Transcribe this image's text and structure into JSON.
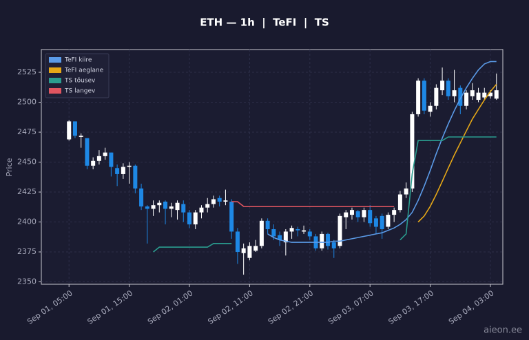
{
  "chart_data": {
    "type": "candlestick",
    "title": "ETH — 1h  |  TeFI  |  TS",
    "y_label": "Price",
    "watermark": "aieon.ee",
    "x": [
      "Sep 01, 05:00",
      "Sep 01, 06:00",
      "Sep 01, 07:00",
      "Sep 01, 08:00",
      "Sep 01, 09:00",
      "Sep 01, 10:00",
      "Sep 01, 11:00",
      "Sep 01, 12:00",
      "Sep 01, 13:00",
      "Sep 01, 14:00",
      "Sep 01, 15:00",
      "Sep 01, 16:00",
      "Sep 01, 17:00",
      "Sep 01, 18:00",
      "Sep 01, 19:00",
      "Sep 01, 20:00",
      "Sep 01, 21:00",
      "Sep 01, 22:00",
      "Sep 01, 23:00",
      "Sep 02, 00:00",
      "Sep 02, 01:00",
      "Sep 02, 02:00",
      "Sep 02, 03:00",
      "Sep 02, 04:00",
      "Sep 02, 05:00",
      "Sep 02, 06:00",
      "Sep 02, 07:00",
      "Sep 02, 08:00",
      "Sep 02, 09:00",
      "Sep 02, 10:00",
      "Sep 02, 11:00",
      "Sep 02, 12:00",
      "Sep 02, 13:00",
      "Sep 02, 14:00",
      "Sep 02, 15:00",
      "Sep 02, 16:00",
      "Sep 02, 17:00",
      "Sep 02, 18:00",
      "Sep 02, 19:00",
      "Sep 02, 20:00",
      "Sep 02, 21:00",
      "Sep 02, 22:00",
      "Sep 02, 23:00",
      "Sep 03, 00:00",
      "Sep 03, 01:00",
      "Sep 03, 02:00",
      "Sep 03, 03:00",
      "Sep 03, 04:00",
      "Sep 03, 05:00",
      "Sep 03, 06:00",
      "Sep 03, 07:00",
      "Sep 03, 08:00",
      "Sep 03, 09:00",
      "Sep 03, 10:00",
      "Sep 03, 11:00",
      "Sep 03, 12:00",
      "Sep 03, 13:00",
      "Sep 03, 14:00",
      "Sep 03, 15:00",
      "Sep 03, 16:00",
      "Sep 03, 17:00",
      "Sep 03, 18:00",
      "Sep 03, 19:00",
      "Sep 03, 20:00",
      "Sep 03, 21:00",
      "Sep 03, 22:00",
      "Sep 03, 23:00",
      "Sep 04, 00:00",
      "Sep 04, 01:00",
      "Sep 04, 02:00",
      "Sep 04, 03:00",
      "Sep 04, 04:00"
    ],
    "open": [
      2469,
      2484,
      2471,
      2470,
      2447,
      2451,
      2455,
      2458,
      2445,
      2440,
      2446,
      2447,
      2428,
      2413,
      2411,
      2414,
      2417,
      2411,
      2410,
      2415,
      2408,
      2398,
      2408,
      2412,
      2415,
      2420,
      2417,
      2417,
      2392,
      2374,
      2370,
      2376,
      2380,
      2401,
      2394,
      2389,
      2383,
      2392,
      2394,
      2392,
      2392,
      2388,
      2378,
      2390,
      2383,
      2380,
      2404,
      2406,
      2409,
      2404,
      2410,
      2403,
      2405,
      2396,
      2406,
      2410,
      2423,
      2428,
      2490,
      2518,
      2492,
      2497,
      2510,
      2518,
      2505,
      2512,
      2497,
      2505,
      2502,
      2504,
      2505,
      2503
    ],
    "high": [
      2485,
      2484,
      2474,
      2470,
      2454,
      2460,
      2462,
      2458,
      2448,
      2449,
      2450,
      2448,
      2432,
      2414,
      2418,
      2418,
      2418,
      2416,
      2418,
      2418,
      2410,
      2410,
      2414,
      2420,
      2422,
      2422,
      2427,
      2419,
      2395,
      2382,
      2383,
      2385,
      2403,
      2403,
      2398,
      2392,
      2394,
      2397,
      2396,
      2397,
      2394,
      2390,
      2392,
      2391,
      2385,
      2407,
      2410,
      2412,
      2410,
      2412,
      2414,
      2405,
      2407,
      2408,
      2412,
      2426,
      2433,
      2492,
      2520,
      2520,
      2500,
      2515,
      2529,
      2520,
      2527,
      2514,
      2510,
      2516,
      2512,
      2512,
      2510,
      2524
    ],
    "low": [
      2468,
      2470,
      2462,
      2444,
      2444,
      2448,
      2452,
      2438,
      2430,
      2436,
      2432,
      2424,
      2410,
      2382,
      2405,
      2408,
      2398,
      2404,
      2402,
      2400,
      2395,
      2394,
      2403,
      2408,
      2412,
      2413,
      2414,
      2386,
      2365,
      2356,
      2368,
      2375,
      2378,
      2390,
      2385,
      2380,
      2372,
      2386,
      2388,
      2390,
      2385,
      2376,
      2376,
      2377,
      2370,
      2378,
      2394,
      2402,
      2400,
      2400,
      2396,
      2390,
      2386,
      2394,
      2400,
      2408,
      2420,
      2425,
      2488,
      2490,
      2488,
      2494,
      2506,
      2502,
      2500,
      2490,
      2494,
      2502,
      2500,
      2502,
      2503,
      2502
    ],
    "close": [
      2484,
      2472,
      2472,
      2447,
      2451,
      2455,
      2458,
      2446,
      2440,
      2446,
      2447,
      2428,
      2413,
      2411,
      2414,
      2416,
      2411,
      2413,
      2416,
      2408,
      2398,
      2408,
      2412,
      2415,
      2419,
      2417,
      2418,
      2392,
      2375,
      2378,
      2380,
      2380,
      2401,
      2394,
      2388,
      2385,
      2392,
      2395,
      2393,
      2393,
      2388,
      2378,
      2390,
      2380,
      2378,
      2405,
      2408,
      2410,
      2404,
      2410,
      2399,
      2396,
      2394,
      2406,
      2410,
      2423,
      2428,
      2490,
      2518,
      2493,
      2497,
      2512,
      2518,
      2505,
      2510,
      2497,
      2508,
      2510,
      2508,
      2508,
      2508,
      2510
    ],
    "up_color": "#ffffff",
    "down_color": "#1e88e5",
    "series": [
      {
        "name": "TeFI kiire",
        "color": "#5b9be8",
        "values": [
          null,
          null,
          null,
          null,
          null,
          null,
          null,
          null,
          null,
          null,
          null,
          null,
          null,
          null,
          null,
          null,
          null,
          null,
          null,
          null,
          null,
          null,
          null,
          null,
          null,
          null,
          null,
          null,
          null,
          null,
          null,
          null,
          null,
          2390,
          2387,
          2385,
          2384,
          2383,
          2383,
          2383,
          2383,
          2383,
          2383,
          2383,
          2384,
          2384,
          2385,
          2386,
          2387,
          2388,
          2389,
          2390,
          2391,
          2393,
          2395,
          2398,
          2402,
          2408,
          2418,
          2430,
          2443,
          2457,
          2470,
          2482,
          2493,
          2503,
          2512,
          2520,
          2527,
          2532,
          2534,
          2534
        ]
      },
      {
        "name": "TeFI aeglane",
        "color": "#e6a817",
        "values": [
          null,
          null,
          null,
          null,
          null,
          null,
          null,
          null,
          null,
          null,
          null,
          null,
          null,
          null,
          null,
          null,
          null,
          null,
          null,
          null,
          null,
          null,
          null,
          null,
          null,
          null,
          null,
          null,
          null,
          null,
          null,
          null,
          null,
          null,
          null,
          null,
          null,
          null,
          null,
          null,
          null,
          null,
          null,
          null,
          null,
          null,
          null,
          null,
          null,
          null,
          null,
          null,
          null,
          null,
          null,
          null,
          null,
          null,
          2400,
          2405,
          2413,
          2423,
          2434,
          2445,
          2456,
          2466,
          2476,
          2486,
          2494,
          2502,
          2509,
          2515
        ]
      },
      {
        "name": "TS tõusev",
        "color": "#2a9d8f",
        "values": [
          null,
          null,
          null,
          null,
          null,
          null,
          null,
          null,
          null,
          null,
          null,
          null,
          null,
          null,
          2375,
          2379,
          2379,
          2379,
          2379,
          2379,
          2379,
          2379,
          2379,
          2379,
          2382,
          2382,
          2382,
          2382,
          null,
          null,
          null,
          null,
          null,
          null,
          null,
          null,
          null,
          null,
          null,
          null,
          null,
          null,
          null,
          null,
          null,
          null,
          null,
          null,
          null,
          null,
          null,
          null,
          null,
          null,
          null,
          2385,
          2390,
          2440,
          2468,
          2468,
          2468,
          2468,
          2468,
          2471,
          2471,
          2471,
          2471,
          2471,
          2471,
          2471,
          2471,
          2471
        ]
      },
      {
        "name": "TS langev",
        "color": "#e05560",
        "values": [
          null,
          null,
          null,
          null,
          null,
          null,
          null,
          null,
          null,
          null,
          null,
          null,
          null,
          null,
          null,
          null,
          null,
          null,
          null,
          null,
          null,
          null,
          null,
          null,
          null,
          null,
          null,
          2417,
          2417,
          2413,
          2413,
          2413,
          2413,
          2413,
          2413,
          2413,
          2413,
          2413,
          2413,
          2413,
          2413,
          2413,
          2413,
          2413,
          2413,
          2413,
          2413,
          2413,
          2413,
          2413,
          2413,
          2413,
          2413,
          2413,
          2413,
          null,
          null,
          null,
          null,
          null,
          null,
          null,
          null,
          null,
          null,
          null,
          null,
          null,
          null,
          null,
          null,
          null
        ]
      }
    ],
    "ylim": [
      2348,
      2544
    ],
    "yticks": [
      2350,
      2375,
      2400,
      2425,
      2450,
      2475,
      2500,
      2525
    ],
    "xticks": [
      "Sep 01, 05:00",
      "Sep 01, 15:00",
      "Sep 02, 01:00",
      "Sep 02, 11:00",
      "Sep 02, 21:00",
      "Sep 03, 07:00",
      "Sep 03, 17:00",
      "Sep 04, 03:00"
    ],
    "grid": true,
    "legend": "upper left"
  }
}
